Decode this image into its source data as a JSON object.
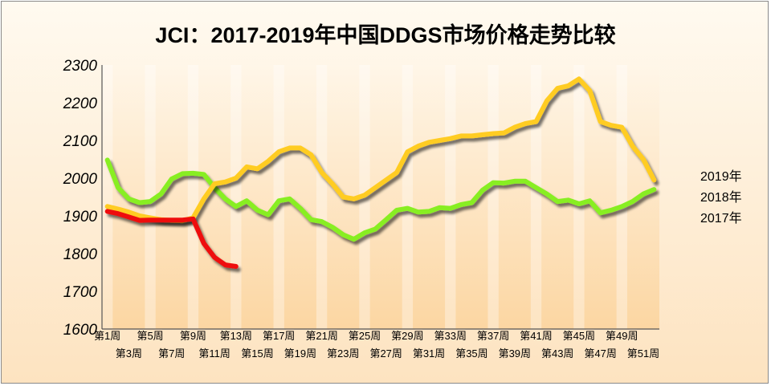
{
  "chart_data": {
    "type": "line",
    "title": "JCI：2017-2019年中国DDGS市场价格走势比较",
    "xlabel": "",
    "ylabel": "",
    "ylim": [
      1600,
      2300
    ],
    "yticks": [
      1600,
      1700,
      1800,
      1900,
      2000,
      2100,
      2200,
      2300
    ],
    "grid": false,
    "legend_position": "right",
    "x": [
      "第1周",
      "第2周",
      "第3周",
      "第4周",
      "第5周",
      "第6周",
      "第7周",
      "第8周",
      "第9周",
      "第10周",
      "第11周",
      "第12周",
      "第13周",
      "第14周",
      "第15周",
      "第16周",
      "第17周",
      "第18周",
      "第19周",
      "第20周",
      "第21周",
      "第22周",
      "第23周",
      "第24周",
      "第25周",
      "第26周",
      "第27周",
      "第28周",
      "第29周",
      "第30周",
      "第31周",
      "第32周",
      "第33周",
      "第34周",
      "第35周",
      "第36周",
      "第37周",
      "第38周",
      "第39周",
      "第40周",
      "第41周",
      "第42周",
      "第43周",
      "第44周",
      "第45周",
      "第46周",
      "第47周",
      "第48周",
      "第49周",
      "第50周",
      "第51周",
      "第52周"
    ],
    "x_tick_labels": [
      "第1周",
      "第3周",
      "第5周",
      "第7周",
      "第9周",
      "第11周",
      "第13周",
      "第15周",
      "第17周",
      "第19周",
      "第21周",
      "第23周",
      "第25周",
      "第27周",
      "第29周",
      "第31周",
      "第33周",
      "第35周",
      "第37周",
      "第39周",
      "第41周",
      "第43周",
      "第45周",
      "第47周",
      "第49周",
      "第51周"
    ],
    "series": [
      {
        "name": "2019年",
        "color": "#ee1111",
        "values": [
          1912,
          1906,
          1897,
          1888,
          1889,
          1889,
          1889,
          1889,
          1892,
          1827,
          1790,
          1770,
          1766,
          null,
          null,
          null,
          null,
          null,
          null,
          null,
          null,
          null,
          null,
          null,
          null,
          null,
          null,
          null,
          null,
          null,
          null,
          null,
          null,
          null,
          null,
          null,
          null,
          null,
          null,
          null,
          null,
          null,
          null,
          null,
          null,
          null,
          null,
          null,
          null,
          null,
          null,
          null
        ]
      },
      {
        "name": "2018年",
        "color": "#ffcc22",
        "values": [
          1925,
          1918,
          1910,
          1900,
          1895,
          1890,
          1888,
          1887,
          1895,
          1945,
          1985,
          1990,
          2000,
          2030,
          2025,
          2045,
          2070,
          2080,
          2080,
          2062,
          2015,
          1985,
          1950,
          1945,
          1955,
          1975,
          1995,
          2015,
          2070,
          2085,
          2095,
          2100,
          2105,
          2112,
          2112,
          2115,
          2118,
          2120,
          2135,
          2145,
          2150,
          2205,
          2238,
          2245,
          2263,
          2232,
          2150,
          2140,
          2135,
          2085,
          2050,
          1995
        ]
      },
      {
        "name": "2017年",
        "color": "#88ee22",
        "values": [
          2048,
          1975,
          1945,
          1935,
          1938,
          1958,
          1998,
          2012,
          2013,
          2010,
          1975,
          1945,
          1925,
          1940,
          1915,
          1903,
          1940,
          1945,
          1920,
          1890,
          1885,
          1870,
          1850,
          1838,
          1855,
          1865,
          1890,
          1915,
          1920,
          1910,
          1912,
          1922,
          1920,
          1930,
          1935,
          1968,
          1988,
          1987,
          1992,
          1992,
          1975,
          1958,
          1938,
          1942,
          1932,
          1940,
          1908,
          1915,
          1925,
          1938,
          1958,
          1970
        ]
      }
    ]
  }
}
